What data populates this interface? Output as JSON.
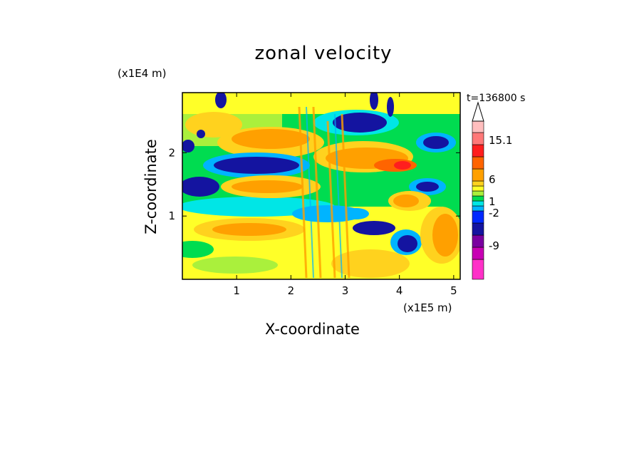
{
  "title": "zonal velocity",
  "time_label": "t=136800 s",
  "chart_data": {
    "type": "heatmap",
    "title": "zonal velocity",
    "xlabel": "X-coordinate",
    "ylabel": "Z-coordinate",
    "x_scale_label": "(x1E5 m)",
    "y_scale_label": "(x1E4 m)",
    "xlim": [
      0,
      5.12
    ],
    "ylim": [
      0,
      2.95
    ],
    "x_ticks": [
      1,
      2,
      3,
      4,
      5
    ],
    "y_ticks": [
      1,
      2
    ],
    "x_tick_labels": [
      "1",
      "2",
      "3",
      "4",
      "5"
    ],
    "y_tick_labels": [
      "1",
      "2"
    ],
    "colorbar": {
      "labels": [
        "15.1",
        "6",
        "1",
        "-2",
        "-9"
      ],
      "levels": [
        -15,
        -12,
        -9,
        -6,
        -4,
        -2,
        -1,
        0,
        1,
        2,
        4,
        6,
        8,
        12,
        15.1
      ],
      "colors": [
        "#ff30c8",
        "#c800b4",
        "#7a00a0",
        "#1414a0",
        "#0028ff",
        "#00b4ff",
        "#00e6e6",
        "#00dc50",
        "#aaf03c",
        "#ffff28",
        "#ffd21e",
        "#ffa000",
        "#ff6400",
        "#ff1e1e",
        "#ff7878",
        "#ffbebe"
      ],
      "extend_max": true
    }
  }
}
